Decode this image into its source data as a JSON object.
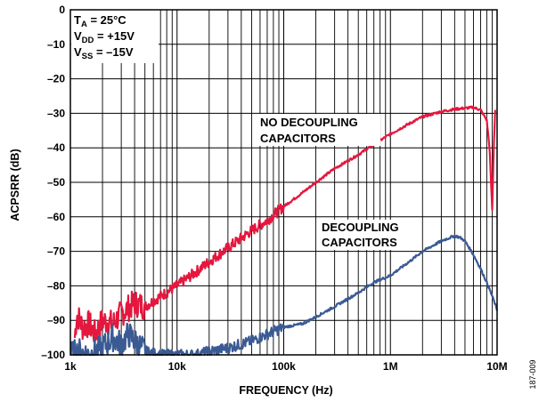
{
  "chart_data": {
    "type": "line",
    "title": "",
    "xlabel": "FREQUENCY (Hz)",
    "ylabel": "ACPSRR (dB)",
    "xscale": "log",
    "xlim": [
      1000,
      10000000
    ],
    "ylim": [
      -100,
      0
    ],
    "grid": true,
    "x_ticks": [
      {
        "value": 1000,
        "label": "1k"
      },
      {
        "value": 10000,
        "label": "10k"
      },
      {
        "value": 100000,
        "label": "100k"
      },
      {
        "value": 1000000,
        "label": "1M"
      },
      {
        "value": 10000000,
        "label": "10M"
      }
    ],
    "y_ticks": [
      {
        "value": 0,
        "label": "0"
      },
      {
        "value": -10,
        "label": "–10"
      },
      {
        "value": -20,
        "label": "–20"
      },
      {
        "value": -30,
        "label": "–30"
      },
      {
        "value": -40,
        "label": "–40"
      },
      {
        "value": -50,
        "label": "–50"
      },
      {
        "value": -60,
        "label": "–60"
      },
      {
        "value": -70,
        "label": "–70"
      },
      {
        "value": -80,
        "label": "–80"
      },
      {
        "value": -90,
        "label": "–90"
      },
      {
        "value": -100,
        "label": "–100"
      }
    ],
    "conditions": [
      {
        "main": "T",
        "sub": "A",
        "rest": " = 25°C"
      },
      {
        "main": "V",
        "sub": "DD",
        "rest": " = +15V"
      },
      {
        "main": "V",
        "sub": "SS",
        "rest": " = –15V"
      }
    ],
    "series": [
      {
        "color": "#e4173e",
        "annotation": [
          "NO DECOUPLING",
          "CAPACITORS"
        ],
        "noise": true,
        "points": [
          [
            1100,
            -95
          ],
          [
            1150,
            -88
          ],
          [
            1300,
            -92
          ],
          [
            1500,
            -91
          ],
          [
            1700,
            -94
          ],
          [
            2000,
            -90
          ],
          [
            2500,
            -91
          ],
          [
            3000,
            -88
          ],
          [
            4000,
            -85
          ],
          [
            5000,
            -86
          ],
          [
            7000,
            -83
          ],
          [
            10000,
            -80
          ],
          [
            15000,
            -76
          ],
          [
            20000,
            -73
          ],
          [
            30000,
            -69
          ],
          [
            50000,
            -64
          ],
          [
            70000,
            -61
          ],
          [
            100000,
            -57
          ],
          [
            150000,
            -53
          ],
          [
            200000,
            -50
          ],
          [
            300000,
            -46
          ],
          [
            500000,
            -42
          ],
          [
            700000,
            -39
          ],
          [
            1000000,
            -36
          ],
          [
            1500000,
            -33
          ],
          [
            2000000,
            -31
          ],
          [
            3000000,
            -29.5
          ],
          [
            4000000,
            -28.8
          ],
          [
            5000000,
            -28.5
          ],
          [
            6000000,
            -28.3
          ],
          [
            7000000,
            -29
          ],
          [
            8000000,
            -32
          ],
          [
            8500000,
            -40
          ],
          [
            9000000,
            -58
          ],
          [
            9300000,
            -40
          ],
          [
            9600000,
            -29
          ]
        ]
      },
      {
        "color": "#3a5a94",
        "annotation": [
          "DECOUPLING",
          "CAPACITORS"
        ],
        "noise": true,
        "points": [
          [
            1000,
            -100
          ],
          [
            1200,
            -99
          ],
          [
            1500,
            -100
          ],
          [
            2000,
            -98
          ],
          [
            2500,
            -95
          ],
          [
            3000,
            -97
          ],
          [
            3500,
            -94
          ],
          [
            4000,
            -96
          ],
          [
            5000,
            -99
          ],
          [
            7000,
            -100
          ],
          [
            10000,
            -100
          ],
          [
            15000,
            -100
          ],
          [
            20000,
            -99
          ],
          [
            30000,
            -98
          ],
          [
            50000,
            -96
          ],
          [
            70000,
            -94
          ],
          [
            100000,
            -92
          ],
          [
            150000,
            -91
          ],
          [
            200000,
            -89
          ],
          [
            300000,
            -86
          ],
          [
            500000,
            -82
          ],
          [
            700000,
            -79
          ],
          [
            1000000,
            -77
          ],
          [
            1500000,
            -73
          ],
          [
            2000000,
            -70
          ],
          [
            3000000,
            -67
          ],
          [
            4000000,
            -65.5
          ],
          [
            4500000,
            -66
          ],
          [
            5000000,
            -67
          ],
          [
            6000000,
            -71
          ],
          [
            7000000,
            -75
          ],
          [
            8000000,
            -79
          ],
          [
            9000000,
            -83
          ],
          [
            10000000,
            -87
          ]
        ]
      }
    ]
  },
  "figure_id": "187-009"
}
